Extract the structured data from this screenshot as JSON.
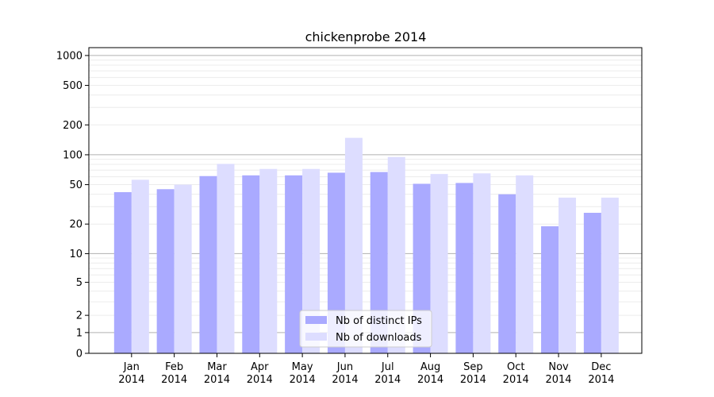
{
  "chart_data": {
    "type": "bar",
    "title": "chickenprobe 2014",
    "xlabel": "",
    "ylabel": "",
    "yscale": "symlog",
    "ylim": [
      0,
      1200
    ],
    "grid": "horizontal",
    "legend_position": "bottom-center",
    "categories": [
      {
        "month": "Jan",
        "year": "2014"
      },
      {
        "month": "Feb",
        "year": "2014"
      },
      {
        "month": "Mar",
        "year": "2014"
      },
      {
        "month": "Apr",
        "year": "2014"
      },
      {
        "month": "May",
        "year": "2014"
      },
      {
        "month": "Jun",
        "year": "2014"
      },
      {
        "month": "Jul",
        "year": "2014"
      },
      {
        "month": "Aug",
        "year": "2014"
      },
      {
        "month": "Sep",
        "year": "2014"
      },
      {
        "month": "Oct",
        "year": "2014"
      },
      {
        "month": "Nov",
        "year": "2014"
      },
      {
        "month": "Dec",
        "year": "2014"
      }
    ],
    "yticks": [
      {
        "value": 0,
        "label": "0"
      },
      {
        "value": 1,
        "label": "1"
      },
      {
        "value": 2,
        "label": "2"
      },
      {
        "value": 5,
        "label": "5"
      },
      {
        "value": 10,
        "label": "10"
      },
      {
        "value": 20,
        "label": "20"
      },
      {
        "value": 50,
        "label": "50"
      },
      {
        "value": 100,
        "label": "100"
      },
      {
        "value": 200,
        "label": "200"
      },
      {
        "value": 500,
        "label": "500"
      },
      {
        "value": 1000,
        "label": "1000"
      }
    ],
    "series": [
      {
        "name": "Nb of distinct IPs",
        "color": "#aaaaff",
        "values": [
          42,
          45,
          61,
          62,
          62,
          66,
          67,
          51,
          52,
          40,
          19,
          26
        ]
      },
      {
        "name": "Nb of downloads",
        "color": "#ddddff",
        "values": [
          56,
          50,
          81,
          72,
          72,
          148,
          95,
          64,
          65,
          62,
          37,
          37
        ]
      }
    ]
  }
}
